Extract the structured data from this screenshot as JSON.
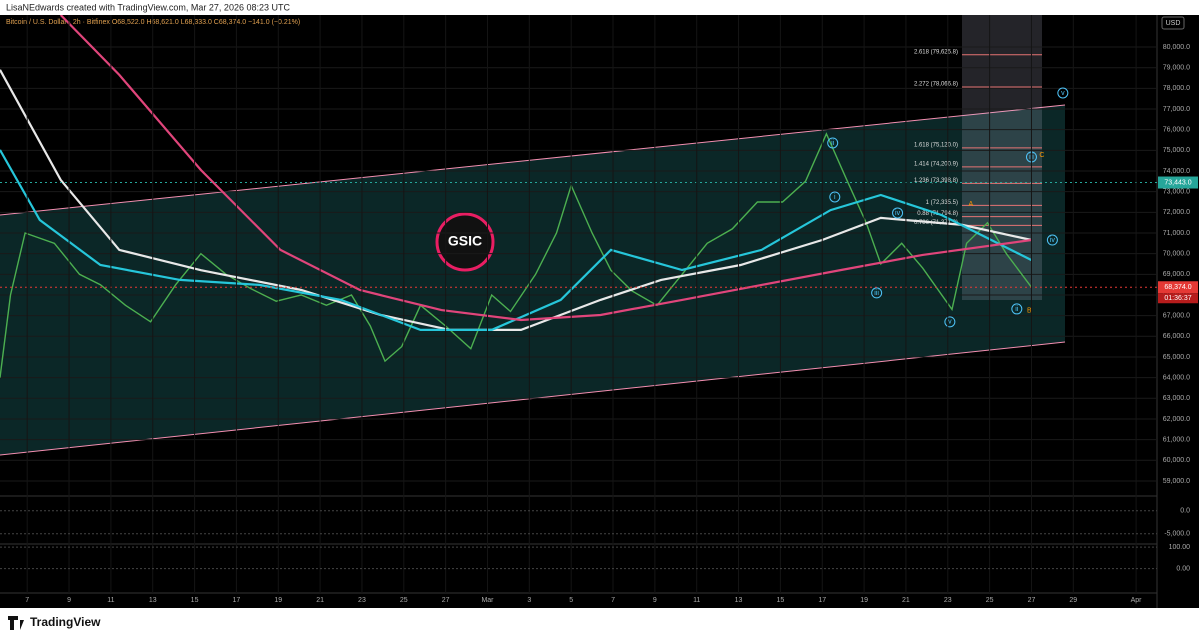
{
  "header": {
    "credit": "LisaNEdwards created with TradingView.com, Mar 27, 2026 08:23 UTC",
    "legend": "Bitcoin / U.S. Dollar · 2h · Bitfinex  O68,522.0 H68,621.0 L68,333.0 C68,374.0 −141.0 (−0.21%)",
    "logo": "GSIC",
    "currency": "USD",
    "footer": "TradingView"
  },
  "chart_data": {
    "type": "line",
    "xlim": [
      5.7,
      61
    ],
    "ylim": [
      58320,
      81550
    ],
    "xticks": [
      {
        "value": 7,
        "label": "7"
      },
      {
        "value": 9,
        "label": "9"
      },
      {
        "value": 11,
        "label": "11"
      },
      {
        "value": 13,
        "label": "13"
      },
      {
        "value": 15,
        "label": "15"
      },
      {
        "value": 17,
        "label": "17"
      },
      {
        "value": 19,
        "label": "19"
      },
      {
        "value": 21,
        "label": "21"
      },
      {
        "value": 23,
        "label": "23"
      },
      {
        "value": 25,
        "label": "25"
      },
      {
        "value": 27,
        "label": "27"
      },
      {
        "value": 29,
        "label": "Mar"
      },
      {
        "value": 31,
        "label": "3"
      },
      {
        "value": 33,
        "label": "5"
      },
      {
        "value": 35,
        "label": "7"
      },
      {
        "value": 37,
        "label": "9"
      },
      {
        "value": 39,
        "label": "11"
      },
      {
        "value": 41,
        "label": "13"
      },
      {
        "value": 43,
        "label": "15"
      },
      {
        "value": 45,
        "label": "17"
      },
      {
        "value": 47,
        "label": "19"
      },
      {
        "value": 49,
        "label": "21"
      },
      {
        "value": 51,
        "label": "23"
      },
      {
        "value": 53,
        "label": "25"
      },
      {
        "value": 55,
        "label": "27"
      },
      {
        "value": 57,
        "label": "29"
      },
      {
        "value": 60,
        "label": "Apr"
      }
    ],
    "yticks": [
      {
        "value": 59000,
        "label": "59,000.0"
      },
      {
        "value": 60000,
        "label": "60,000.0"
      },
      {
        "value": 61000,
        "label": "61,000.0"
      },
      {
        "value": 62000,
        "label": "62,000.0"
      },
      {
        "value": 63000,
        "label": "63,000.0"
      },
      {
        "value": 64000,
        "label": "64,000.0"
      },
      {
        "value": 65000,
        "label": "65,000.0"
      },
      {
        "value": 66000,
        "label": "66,000.0"
      },
      {
        "value": 67000,
        "label": "67,000.0"
      },
      {
        "value": 68000,
        "label": "68,000.0"
      },
      {
        "value": 69000,
        "label": "69,000.0"
      },
      {
        "value": 70000,
        "label": "70,000.0"
      },
      {
        "value": 71000,
        "label": "71,000.0"
      },
      {
        "value": 72000,
        "label": "72,000.0"
      },
      {
        "value": 73000,
        "label": "73,000.0"
      },
      {
        "value": 74000,
        "label": "74,000.0"
      },
      {
        "value": 75000,
        "label": "75,000.0"
      },
      {
        "value": 76000,
        "label": "76,000.0"
      },
      {
        "value": 77000,
        "label": "77,000.0"
      },
      {
        "value": 78000,
        "label": "78,000.0"
      },
      {
        "value": 79000,
        "label": "79,000.0"
      },
      {
        "value": 80000,
        "label": "80,000.0"
      }
    ],
    "series": [
      {
        "color": "#4caf50",
        "x": [
          5.7,
          6.2,
          6.9,
          8.3,
          9.5,
          10.5,
          11.7,
          12.9,
          14.1,
          15.3,
          16.5,
          17.7,
          18.9,
          20.1,
          21.3,
          22.5,
          23.4,
          24.1,
          24.9,
          25.8,
          27.0,
          28.2,
          29.2,
          30.1,
          31.3,
          32.3,
          33.0,
          34.0,
          34.9,
          35.9,
          37.1,
          38.3,
          39.5,
          40.7,
          41.9,
          43.1,
          44.2,
          45.2,
          46.2,
          47.1,
          47.8,
          48.8,
          49.8,
          51.2,
          51.9,
          52.9,
          53.8,
          55.0
        ],
        "values": [
          64000,
          68000,
          71000,
          70500,
          69000,
          68500,
          67500,
          66700,
          68500,
          70000,
          69000,
          68300,
          67700,
          68000,
          67500,
          68000,
          66500,
          64800,
          65500,
          67500,
          66500,
          65400,
          68000,
          67200,
          69000,
          71000,
          73300,
          71000,
          69200,
          68200,
          67500,
          69000,
          70500,
          71200,
          72500,
          72500,
          73500,
          75800,
          73500,
          71500,
          69500,
          70500,
          69300,
          67300,
          70500,
          71500,
          70000,
          68374
        ]
      },
      {
        "color": "#e8e8e8",
        "x": [
          5.7,
          8.6,
          11.4,
          15.3,
          20.1,
          23.9,
          27.2,
          30.6,
          34.4,
          37.3,
          41.1,
          45.0,
          47.8,
          51.7,
          55.0
        ],
        "values": [
          78900,
          73570,
          70180,
          69200,
          68240,
          67030,
          66310,
          66310,
          67760,
          68730,
          69450,
          70660,
          71730,
          71390,
          70660
        ]
      },
      {
        "color": "#26c6da",
        "x": [
          5.7,
          7.6,
          10.5,
          14.3,
          18.1,
          22.0,
          25.8,
          29.2,
          32.5,
          34.9,
          38.3,
          42.1,
          45.4,
          47.8,
          50.7,
          55.0
        ],
        "values": [
          75020,
          71630,
          69450,
          68730,
          68490,
          67760,
          66310,
          66310,
          67760,
          70180,
          69210,
          70180,
          72110,
          72840,
          71870,
          69690
        ]
      },
      {
        "color": "#e0457b",
        "x": [
          8.6,
          11.4,
          15.3,
          19.1,
          22.9,
          26.8,
          30.6,
          34.4,
          38.3,
          42.1,
          45.9,
          49.8,
          55.0
        ],
        "values": [
          81550,
          78650,
          74050,
          70180,
          68240,
          67270,
          66790,
          67030,
          67760,
          68490,
          69210,
          69940,
          70660
        ]
      }
    ],
    "fib_levels": [
      {
        "value": 79625.8,
        "label": "2.618 (79,625.8)"
      },
      {
        "value": 78066.8,
        "label": "2.272 (78,066.8)"
      },
      {
        "value": 75120.0,
        "label": "1.618 (75,120.0)"
      },
      {
        "value": 74200.9,
        "label": "1.414 (74,200.9)"
      },
      {
        "value": 73398.8,
        "label": "1.236 (73,398.8)"
      },
      {
        "value": 72335.5,
        "label": "1 (72,335.5)"
      },
      {
        "value": 71794.8,
        "label": "0.88 (71,794.8)"
      },
      {
        "value": 71371.3,
        "label": "0.786 (71,371.3)"
      }
    ],
    "waves": [
      {
        "text": "ii",
        "x": 45.5,
        "y": 75356
      },
      {
        "text": "i",
        "x": 45.6,
        "y": 72743
      },
      {
        "text": "iii",
        "x": 47.6,
        "y": 68100
      },
      {
        "text": "iv",
        "x": 48.6,
        "y": 71970
      },
      {
        "text": "v",
        "x": 51.1,
        "y": 66700
      },
      {
        "text": "A",
        "x": 52.1,
        "y": 72400
      },
      {
        "text": "B",
        "x": 54.9,
        "y": 67230
      },
      {
        "text": "C",
        "x": 55.5,
        "y": 74775
      },
      {
        "text": "ii",
        "x": 54.3,
        "y": 67325
      },
      {
        "text": "iii",
        "x": 55.0,
        "y": 74680
      },
      {
        "text": "iv",
        "x": 56.0,
        "y": 70660
      },
      {
        "text": "v",
        "x": 56.5,
        "y": 77775
      }
    ],
    "price_tags": [
      {
        "value": 73443,
        "label": "73,443.0"
      },
      {
        "value": 68374,
        "label": "68,374.0"
      }
    ],
    "countdown": "01:36:37",
    "panes": [
      {
        "ylim": [
          -7000,
          3000
        ],
        "yticks": [
          {
            "value": 0,
            "label": "0.0"
          },
          {
            "value": -5000,
            "label": "-5,000.0"
          }
        ]
      },
      {
        "ylim": [
          -30,
          110
        ],
        "yticks": [
          {
            "value": 100,
            "label": "100.00"
          },
          {
            "value": 0,
            "label": "0.00"
          }
        ]
      }
    ]
  }
}
